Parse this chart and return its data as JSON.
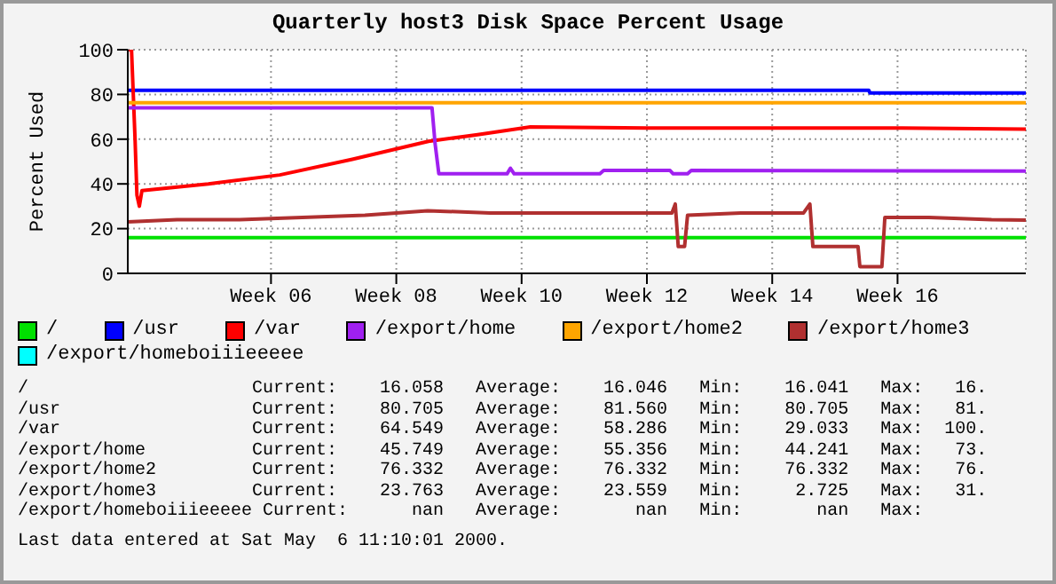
{
  "chart_data": {
    "type": "line",
    "title": "Quarterly host3 Disk Space Percent Usage",
    "ylabel": "Percent Used",
    "xlim": [
      "2000-01-22",
      "2000-05-01T08:00"
    ],
    "xticks": [
      {
        "value": "2000-02-07",
        "label": "Week 06"
      },
      {
        "value": "2000-02-21",
        "label": "Week 08"
      },
      {
        "value": "2000-03-06",
        "label": "Week 10"
      },
      {
        "value": "2000-03-20",
        "label": "Week 12"
      },
      {
        "value": "2000-04-03",
        "label": "Week 14"
      },
      {
        "value": "2000-04-17",
        "label": "Week 16"
      }
    ],
    "ylim": [
      0,
      100
    ],
    "yticks": [
      0,
      20,
      40,
      60,
      80,
      100
    ],
    "grid": true,
    "legend": "bottom",
    "marker": "none",
    "line_style": "solid",
    "series": [
      {
        "name": "/",
        "color": "#00e000",
        "x": [
          "2000-01-22",
          "2000-03-06",
          "2000-04-10",
          "2000-05-01T08:00"
        ],
        "values": [
          16,
          16,
          16,
          16
        ]
      },
      {
        "name": "/usr",
        "color": "#0000ff",
        "x": [
          "2000-01-22",
          "2000-03-06",
          "2000-04-13T19:00",
          "2000-04-13T22:00",
          "2000-05-01T08:00"
        ],
        "values": [
          81.8,
          81.8,
          81.8,
          80.7,
          80.7
        ]
      },
      {
        "name": "/var",
        "color": "#ff0000",
        "x": [
          "2000-01-22",
          "2000-01-22T10:00",
          "2000-01-22T19:30",
          "2000-01-23T00:30",
          "2000-01-23T07:00",
          "2000-01-23T14:00",
          "2000-01-31",
          "2000-02-07T23:30",
          "2000-02-16T02:00",
          "2000-02-24T14:00",
          "2000-03-01T02:00",
          "2000-03-06T23:30",
          "2000-03-20",
          "2000-04-03",
          "2000-04-17",
          "2000-05-01T08:00"
        ],
        "values": [
          100,
          100,
          60,
          35,
          30,
          37,
          40,
          44,
          51,
          59,
          62,
          65.5,
          65,
          65,
          65,
          64.5
        ]
      },
      {
        "name": "/export/home",
        "color": "#a020f0",
        "x": [
          "2000-01-22",
          "2000-02-24T23:45",
          "2000-02-25T08:00",
          "2000-02-25T18:00",
          "2000-03-04T09:00",
          "2000-03-04T18:00",
          "2000-03-05T04:00",
          "2000-03-14T18:00",
          "2000-03-15T04:00",
          "2000-03-22T14:00",
          "2000-03-22T22:30",
          "2000-03-24T13:00",
          "2000-03-24T23:00",
          "2000-05-01T08:00"
        ],
        "values": [
          74,
          74,
          58,
          44.5,
          44.5,
          47,
          44.5,
          44.5,
          46,
          46,
          44.5,
          44.5,
          46,
          45.7
        ]
      },
      {
        "name": "/export/home2",
        "color": "#ffa500",
        "x": [
          "2000-01-22",
          "2000-03-06",
          "2000-05-01T08:00"
        ],
        "values": [
          76.3,
          76.3,
          76.3
        ]
      },
      {
        "name": "/export/home3",
        "color": "#b03030",
        "x": [
          "2000-01-22",
          "2000-01-27T12:00",
          "2000-02-03T12:00",
          "2000-02-10T12:00",
          "2000-02-17T12:00",
          "2000-02-24T12:00",
          "2000-03-02T12:00",
          "2000-03-09T12:00",
          "2000-03-16T12:00",
          "2000-03-22T19:00",
          "2000-03-23T04:00",
          "2000-03-23T12:00",
          "2000-03-24T05:00",
          "2000-03-24T13:00",
          "2000-03-30T12:00",
          "2000-04-06T12:00",
          "2000-04-07T05:00",
          "2000-04-07T13:00",
          "2000-04-12T14:00",
          "2000-04-12T19:00",
          "2000-04-15T06:00",
          "2000-04-15T14:00",
          "2000-04-20T12:00",
          "2000-04-27T12:00",
          "2000-05-01T08:00"
        ],
        "values": [
          23,
          24,
          24,
          25,
          26,
          28,
          27,
          27,
          27,
          27,
          31,
          12,
          12,
          26,
          27,
          27,
          31,
          12,
          12,
          3,
          3,
          25,
          25,
          24,
          23.8
        ]
      },
      {
        "name": "/export/homeboiiieeeee",
        "color": "#00ffff"
      }
    ],
    "annotations": [
      "/                     Current:    16.058   Average:    16.046   Min:    16.041   Max:   16.",
      "/usr                  Current:    80.705   Average:    81.560   Min:    80.705   Max:   81.",
      "/var                  Current:    64.549   Average:    58.286   Min:    29.033   Max:  100.",
      "/export/home          Current:    45.749   Average:    55.356   Min:    44.241   Max:   73.",
      "/export/home2         Current:    76.332   Average:    76.332   Min:    76.332   Max:   76.",
      "/export/home3         Current:    23.763   Average:    23.559   Min:     2.725   Max:   31.",
      "/export/homeboiiieeeee Current:      nan   Average:       nan   Min:       nan   Max:",
      "Last data entered at Sat May  6 11:10:01 2000."
    ]
  }
}
